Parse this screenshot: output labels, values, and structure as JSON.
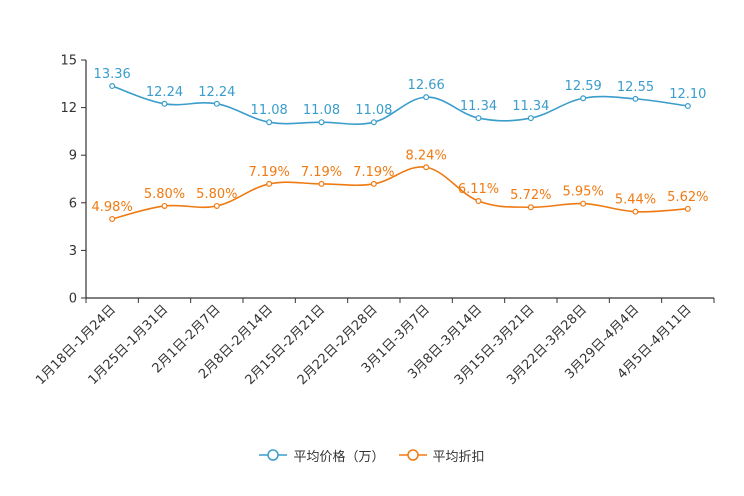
{
  "chart_data": {
    "type": "line",
    "title": "",
    "xlabel": "",
    "ylabel": "",
    "ylim": [
      0,
      15
    ],
    "yticks": [
      "0",
      "3",
      "6",
      "9",
      "12",
      "15"
    ],
    "grid": false,
    "legend_position": "bottom-center",
    "categories": [
      "1月18日-1月24日",
      "1月25日-1月31日",
      "2月1日-2月7日",
      "2月8日-2月14日",
      "2月15日-2月21日",
      "2月22日-2月28日",
      "3月1日-3月7日",
      "3月8日-3月14日",
      "3月15日-3月21日",
      "3月22日-3月28日",
      "3月29日-4月4日",
      "4月5日-4月11日"
    ],
    "series": [
      {
        "name": "平均价格（万）",
        "color": "#3a9dcb",
        "values": [
          13.36,
          12.24,
          12.24,
          11.08,
          11.08,
          11.08,
          12.66,
          11.34,
          11.34,
          12.59,
          12.55,
          12.1
        ],
        "labels": [
          "13.36",
          "12.24",
          "12.24",
          "11.08",
          "11.08",
          "11.08",
          "12.66",
          "11.34",
          "11.34",
          "12.59",
          "12.55",
          "12.10"
        ]
      },
      {
        "name": "平均折扣",
        "color": "#f07a12",
        "values": [
          4.98,
          5.8,
          5.8,
          7.19,
          7.19,
          7.19,
          8.24,
          6.11,
          5.72,
          5.95,
          5.44,
          5.62
        ],
        "labels": [
          "4.98%",
          "5.80%",
          "5.80%",
          "7.19%",
          "7.19%",
          "7.19%",
          "8.24%",
          "6.11%",
          "5.72%",
          "5.95%",
          "5.44%",
          "5.62%"
        ]
      }
    ]
  }
}
